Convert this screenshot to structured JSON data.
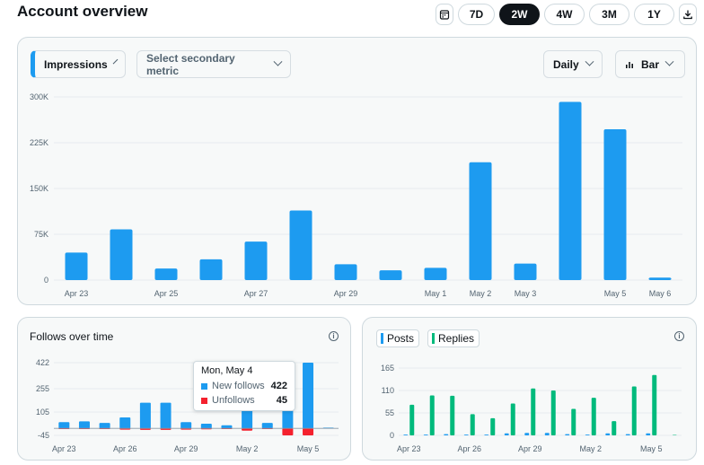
{
  "header": {
    "title": "Account overview",
    "ranges": [
      "7D",
      "2W",
      "4W",
      "3M",
      "1Y"
    ],
    "active_range": "2W"
  },
  "colors": {
    "blue": "#1d9bf0",
    "green": "#00ba7c",
    "red": "#f4212e",
    "dark": "#0f1419"
  },
  "main_card": {
    "metric_label": "Impressions",
    "secondary_label": "Select secondary metric",
    "interval_label": "Daily",
    "chart_type_label": "Bar"
  },
  "follows_card": {
    "title": "Follows over time",
    "tooltip": {
      "title": "Mon, May 4",
      "new_label": "New follows",
      "new_value": "422",
      "unf_label": "Unfollows",
      "unf_value": "45"
    }
  },
  "posts_card": {
    "posts_label": "Posts",
    "replies_label": "Replies"
  },
  "chart_data": [
    {
      "type": "bar",
      "ylim": [
        0,
        300000
      ],
      "yticks": [
        0,
        75000,
        150000,
        225000,
        300000
      ],
      "ytick_labels": [
        "0",
        "75K",
        "150K",
        "225K",
        "300K"
      ],
      "categories": [
        "Apr 23",
        "Apr 24",
        "Apr 25",
        "Apr 26",
        "Apr 27",
        "Apr 28",
        "Apr 29",
        "Apr 30",
        "May 1",
        "May 2",
        "May 3",
        "May 4",
        "May 5",
        "May 6"
      ],
      "xtick_labels": [
        "Apr 23",
        "",
        "Apr 25",
        "",
        "Apr 27",
        "",
        "Apr 29",
        "",
        "May 1",
        "May 2",
        "May 3",
        "",
        "May 5",
        "May 6"
      ],
      "series": [
        {
          "values": [
            45000,
            83000,
            19000,
            34000,
            63000,
            114000,
            26000,
            16000,
            20000,
            193000,
            27000,
            292000,
            247000,
            4000
          ]
        }
      ]
    },
    {
      "type": "bar",
      "ylim": [
        -45,
        422
      ],
      "yticks": [
        -45,
        105,
        255,
        422
      ],
      "ytick_labels": [
        "-45",
        "105",
        "255",
        "422"
      ],
      "categories": [
        "Apr 23",
        "Apr 24",
        "Apr 25",
        "Apr 26",
        "Apr 27",
        "Apr 28",
        "Apr 29",
        "Apr 30",
        "May 1",
        "May 2",
        "May 3",
        "May 4",
        "May 5",
        "May 6"
      ],
      "xtick_labels": [
        "Apr 23",
        "",
        "",
        "Apr 26",
        "",
        "",
        "Apr 29",
        "",
        "",
        "May 2",
        "",
        "",
        "May 5",
        ""
      ],
      "series": [
        {
          "name": "New follows",
          "values": [
            40,
            45,
            35,
            70,
            165,
            165,
            40,
            30,
            20,
            265,
            35,
            422,
            422,
            5
          ]
        },
        {
          "name": "Unfollows",
          "values": [
            -5,
            -5,
            -5,
            -8,
            -10,
            -10,
            -8,
            -6,
            -5,
            -15,
            -5,
            -45,
            -45,
            0
          ]
        }
      ]
    },
    {
      "type": "bar",
      "ylim": [
        0,
        165
      ],
      "yticks": [
        0,
        55,
        110,
        165
      ],
      "ytick_labels": [
        "0",
        "55",
        "110",
        "165"
      ],
      "categories": [
        "Apr 23",
        "Apr 24",
        "Apr 25",
        "Apr 26",
        "Apr 27",
        "Apr 28",
        "Apr 29",
        "Apr 30",
        "May 1",
        "May 2",
        "May 3",
        "May 4",
        "May 5",
        "May 6"
      ],
      "xtick_labels": [
        "Apr 23",
        "",
        "",
        "Apr 26",
        "",
        "",
        "Apr 29",
        "",
        "",
        "May 2",
        "",
        "",
        "May 5",
        ""
      ],
      "series": [
        {
          "name": "Posts",
          "values": [
            2,
            2,
            3,
            2,
            2,
            5,
            6,
            6,
            3,
            2,
            5,
            3,
            5,
            0
          ]
        },
        {
          "name": "Replies",
          "values": [
            75,
            98,
            97,
            52,
            42,
            78,
            115,
            110,
            65,
            92,
            35,
            120,
            148,
            1
          ]
        }
      ]
    }
  ]
}
